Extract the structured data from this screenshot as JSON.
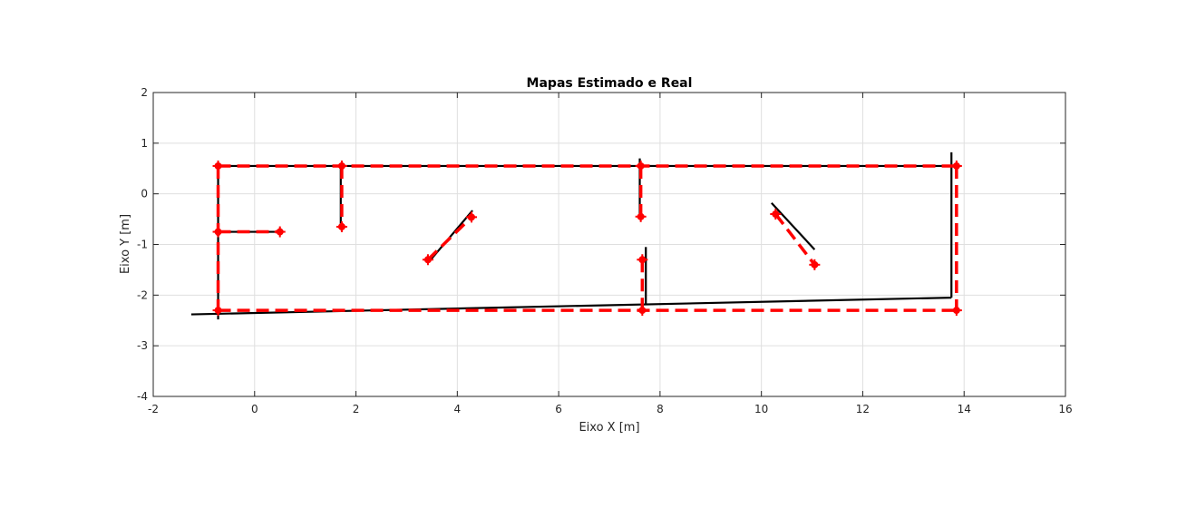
{
  "chart_data": {
    "type": "line",
    "title": "Mapas Estimado e Real",
    "xlabel": "Eixo X [m]",
    "ylabel": "Eixo Y [m]",
    "xlim": [
      -2,
      16
    ],
    "ylim": [
      -4,
      2
    ],
    "xticks": [
      -2,
      0,
      2,
      4,
      6,
      8,
      10,
      12,
      14,
      16
    ],
    "yticks": [
      -4,
      -3,
      -2,
      -1,
      0,
      1,
      2
    ],
    "grid": true,
    "series": [
      {
        "color": "#000000",
        "style": "solid",
        "segments": [
          [
            [
              -1.25,
              -2.38
            ],
            [
              13.75,
              -2.05
            ]
          ],
          [
            [
              -0.7,
              0.55
            ],
            [
              13.75,
              0.55
            ]
          ],
          [
            [
              -0.72,
              0.55
            ],
            [
              -0.72,
              -2.48
            ]
          ],
          [
            [
              -0.72,
              -0.75
            ],
            [
              0.5,
              -0.75
            ]
          ],
          [
            [
              1.7,
              0.55
            ],
            [
              1.7,
              -0.65
            ]
          ],
          [
            [
              3.45,
              -1.33
            ],
            [
              4.3,
              -0.33
            ]
          ],
          [
            [
              7.6,
              0.7
            ],
            [
              7.6,
              -0.45
            ]
          ],
          [
            [
              7.72,
              -1.05
            ],
            [
              7.72,
              -2.18
            ]
          ],
          [
            [
              10.2,
              -0.18
            ],
            [
              11.05,
              -1.1
            ]
          ],
          [
            [
              13.75,
              0.82
            ],
            [
              13.75,
              -2.05
            ]
          ]
        ]
      },
      {
        "color": "#ff0000",
        "style": "dashed",
        "segments": [
          [
            [
              -0.72,
              0.55
            ],
            [
              13.85,
              0.55
            ]
          ],
          [
            [
              -0.72,
              -2.3
            ],
            [
              13.85,
              -2.3
            ]
          ],
          [
            [
              -0.72,
              0.55
            ],
            [
              -0.72,
              -2.3
            ]
          ],
          [
            [
              13.85,
              0.55
            ],
            [
              13.85,
              -2.3
            ]
          ],
          [
            [
              -0.72,
              -0.75
            ],
            [
              0.5,
              -0.75
            ]
          ],
          [
            [
              1.72,
              0.55
            ],
            [
              1.72,
              -0.65
            ]
          ],
          [
            [
              3.42,
              -1.3
            ],
            [
              4.28,
              -0.46
            ]
          ],
          [
            [
              7.62,
              0.55
            ],
            [
              7.62,
              -0.45
            ]
          ],
          [
            [
              7.65,
              -1.3
            ],
            [
              7.65,
              -2.3
            ]
          ],
          [
            [
              10.28,
              -0.4
            ],
            [
              11.05,
              -1.4
            ]
          ]
        ],
        "points": [
          [
            -0.72,
            0.55
          ],
          [
            1.72,
            0.55
          ],
          [
            7.62,
            0.55
          ],
          [
            13.85,
            0.55
          ],
          [
            -0.72,
            -2.3
          ],
          [
            7.65,
            -2.3
          ],
          [
            13.85,
            -2.3
          ],
          [
            -0.72,
            -0.75
          ],
          [
            0.5,
            -0.75
          ],
          [
            1.72,
            -0.65
          ],
          [
            3.42,
            -1.3
          ],
          [
            4.28,
            -0.46
          ],
          [
            7.62,
            -0.45
          ],
          [
            7.65,
            -1.3
          ],
          [
            10.28,
            -0.4
          ],
          [
            11.05,
            -1.4
          ]
        ]
      }
    ]
  }
}
